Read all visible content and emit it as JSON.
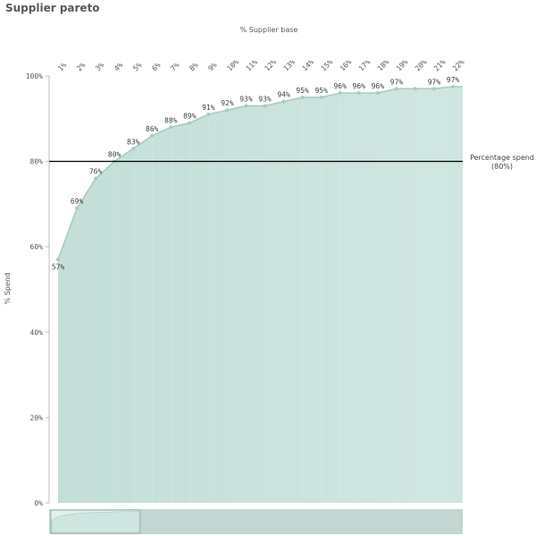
{
  "header": {
    "title": "Supplier pareto"
  },
  "chart_data": {
    "type": "area",
    "title": "Supplier pareto",
    "xlabel": "% Supplier base",
    "ylabel": "% Spend",
    "x": [
      "1%",
      "2%",
      "3%",
      "4%",
      "5%",
      "6%",
      "7%",
      "8%",
      "9%",
      "10%",
      "11%",
      "12%",
      "13%",
      "14%",
      "15%",
      "16%",
      "17%",
      "18%",
      "19%",
      "20%",
      "21%",
      "22%"
    ],
    "values": [
      57,
      69,
      76,
      80,
      83,
      86,
      88,
      89,
      91,
      92,
      93,
      93,
      94,
      95,
      95,
      96,
      96,
      96,
      97,
      97,
      97,
      97.5
    ],
    "data_labels": [
      "57%",
      "69%",
      "76%",
      "80%",
      "83%",
      "86%",
      "88%",
      "89%",
      "91%",
      "92%",
      "93%",
      "93%",
      "94%",
      "95%",
      "95%",
      "96%",
      "96%",
      "96%",
      "97%",
      "",
      "97%",
      "97%"
    ],
    "y_ticks": [
      0,
      20,
      40,
      60,
      80,
      100
    ],
    "y_tick_labels": [
      "0%",
      "20%",
      "40%",
      "60%",
      "80%",
      "100%"
    ],
    "ylim": [
      0,
      100
    ],
    "x_axis_position": "top",
    "reference_line": {
      "value": 80,
      "label_line1": "Percentage spend",
      "label_line2": "(80%)"
    },
    "area_color": "#cfe5e0",
    "line_color": "#a9cbc3",
    "reference_line_color": "#000000",
    "grid": false,
    "scrollbar": {
      "thumb_color": "#dcebe7",
      "track_color": "#c3d6d1"
    }
  }
}
